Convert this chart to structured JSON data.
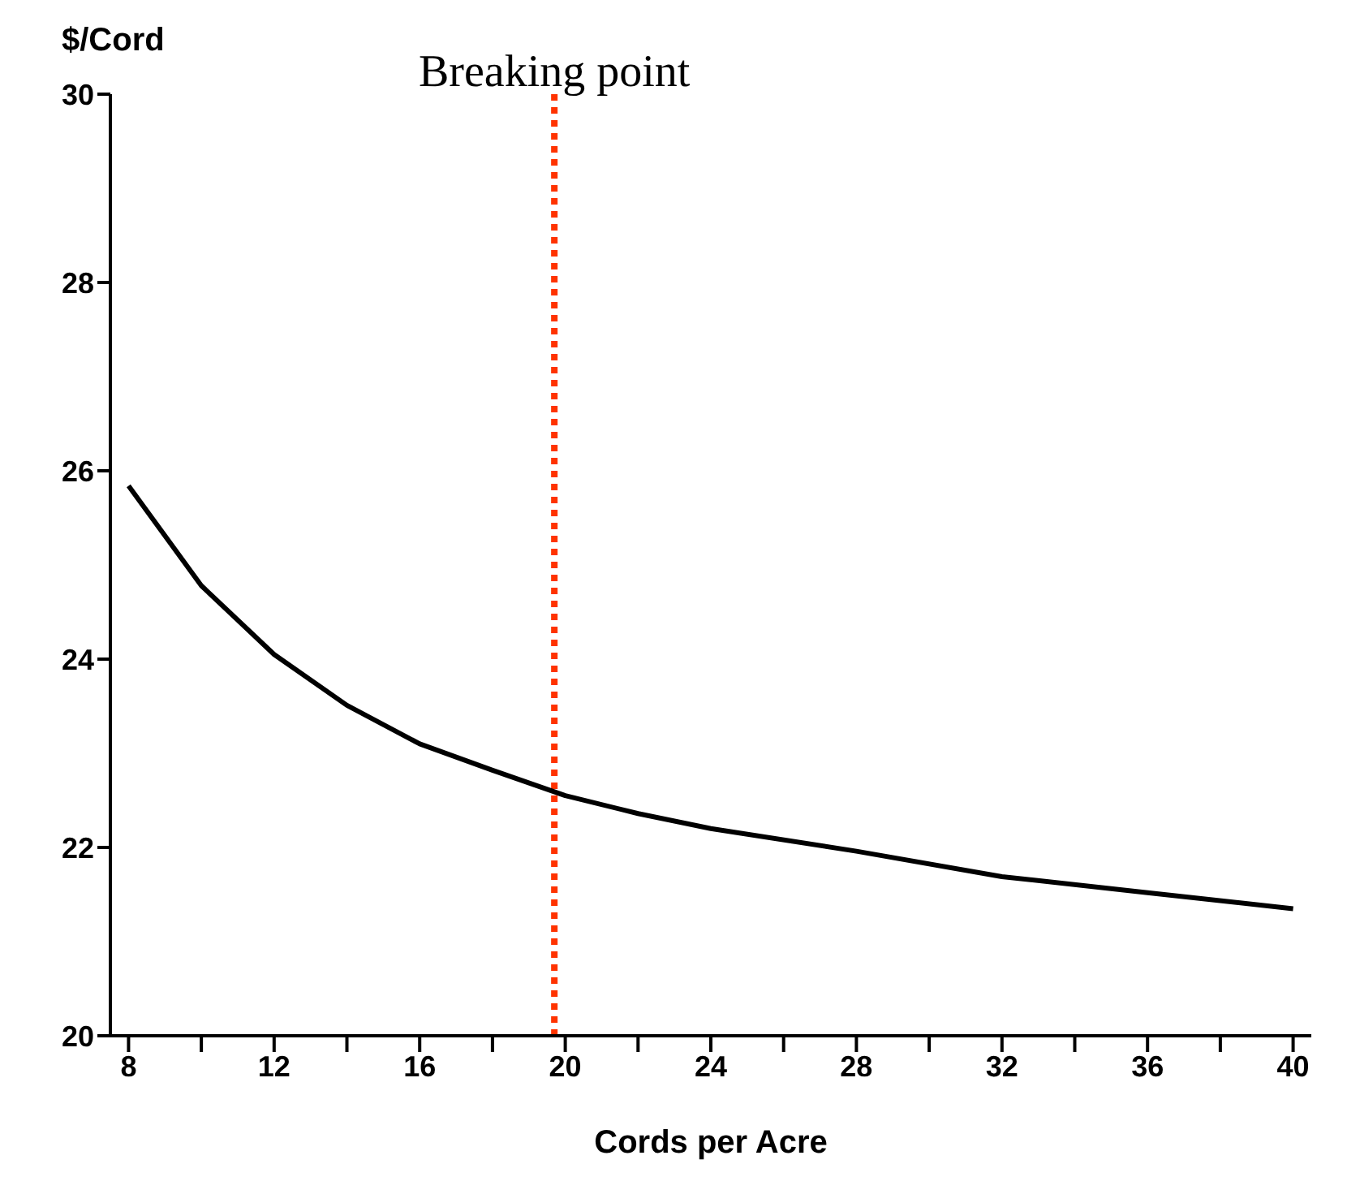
{
  "chart_data": {
    "type": "line",
    "ylabel": "$/Cord",
    "xlabel": "Cords per Acre",
    "x": [
      8,
      10,
      12,
      14,
      16,
      18,
      20,
      22,
      24,
      28,
      32,
      36,
      40
    ],
    "series": [
      {
        "color": "#000000",
        "values": [
          25.84,
          24.78,
          24.05,
          23.51,
          23.1,
          22.82,
          22.55,
          22.36,
          22.2,
          21.96,
          21.69,
          21.52,
          21.35
        ]
      }
    ],
    "xlim": [
      7.5,
      40.5
    ],
    "ylim": [
      20,
      30
    ],
    "xticks": [
      8,
      {
        "value": 10,
        "label": null
      },
      12,
      {
        "value": 14,
        "label": null
      },
      16,
      {
        "value": 18,
        "label": null
      },
      20,
      {
        "value": 22,
        "label": null
      },
      24,
      {
        "value": 26,
        "label": null
      },
      28,
      {
        "value": 30,
        "label": null
      },
      32,
      {
        "value": 34,
        "label": null
      },
      36,
      {
        "value": 38,
        "label": null
      },
      40
    ],
    "yticks": [
      20,
      22,
      24,
      26,
      28,
      30
    ],
    "grid": false,
    "legend": false,
    "marker": "none",
    "line_style": "solid",
    "ref_lines": [
      {
        "axis": "x",
        "value": 19.7,
        "label": "Breaking point",
        "color": "#ff3300",
        "line_style": "dotted"
      }
    ]
  }
}
